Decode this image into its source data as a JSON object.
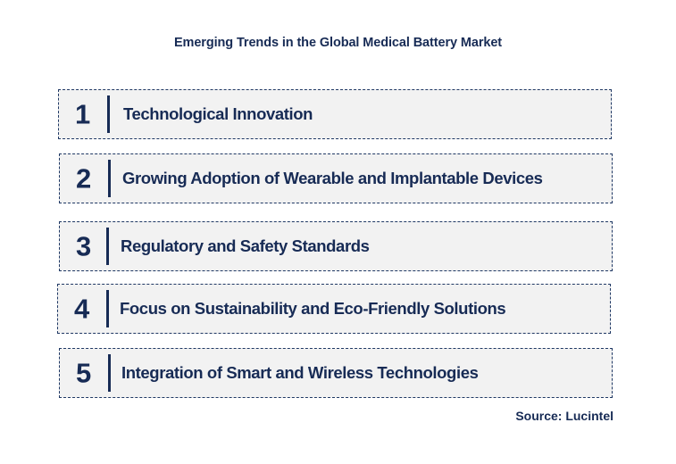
{
  "title": "Emerging Trends in the Global Medical Battery Market",
  "trends": [
    {
      "number": "1",
      "label": "Technological Innovation"
    },
    {
      "number": "2",
      "label": "Growing Adoption of Wearable and Implantable Devices"
    },
    {
      "number": "3",
      "label": "Regulatory and Safety Standards"
    },
    {
      "number": "4",
      "label": "Focus on Sustainability and Eco-Friendly Solutions"
    },
    {
      "number": "5",
      "label": "Integration of Smart and Wireless Technologies"
    }
  ],
  "source": "Source: Lucintel",
  "colors": {
    "text": "#172b55",
    "box_fill": "#f2f2f2",
    "box_border": "#1f3864"
  }
}
